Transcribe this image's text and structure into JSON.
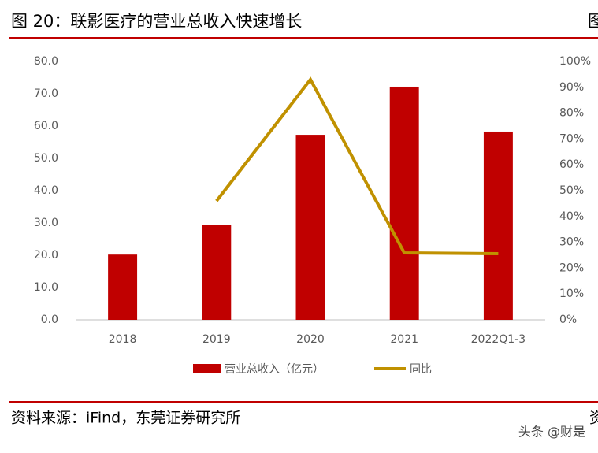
{
  "header": {
    "title": "图 20：联影医疗的营业总收入快速增长",
    "edge_fragment": "图"
  },
  "chart_data": {
    "type": "bar",
    "categories": [
      "2018",
      "2019",
      "2020",
      "2021",
      "2022Q1-3"
    ],
    "series": [
      {
        "name": "营业总收入（亿元）",
        "type": "bar",
        "color": "#c00000",
        "values": [
          20.2,
          29.5,
          57.3,
          72.2,
          58.3
        ]
      },
      {
        "name": "同比",
        "type": "line",
        "axis": "y2",
        "color": "#c09100",
        "values": [
          null,
          46.0,
          93.0,
          25.9,
          25.6
        ]
      }
    ],
    "ylim": [
      0,
      80
    ],
    "yticks": [
      {
        "value": 0,
        "label": "0.0"
      },
      {
        "value": 10,
        "label": "10.0"
      },
      {
        "value": 20,
        "label": "20.0"
      },
      {
        "value": 30,
        "label": "30.0"
      },
      {
        "value": 40,
        "label": "40.0"
      },
      {
        "value": 50,
        "label": "50.0"
      },
      {
        "value": 60,
        "label": "60.0"
      },
      {
        "value": 70,
        "label": "70.0"
      },
      {
        "value": 80,
        "label": "80.0"
      }
    ],
    "y2lim": [
      0,
      100
    ],
    "y2ticks": [
      {
        "value": 0,
        "label": "0%"
      },
      {
        "value": 10,
        "label": "10%"
      },
      {
        "value": 20,
        "label": "20%"
      },
      {
        "value": 30,
        "label": "30%"
      },
      {
        "value": 40,
        "label": "40%"
      },
      {
        "value": 50,
        "label": "50%"
      },
      {
        "value": 60,
        "label": "60%"
      },
      {
        "value": 70,
        "label": "70%"
      },
      {
        "value": 80,
        "label": "80%"
      },
      {
        "value": 90,
        "label": "90%"
      },
      {
        "value": 100,
        "label": "100%"
      }
    ],
    "grid": false,
    "legend": "bottom"
  },
  "footer": {
    "source": "资料来源：iFind，东莞证券研究所",
    "edge_fragment": "资",
    "watermark": "头条 @财是"
  }
}
